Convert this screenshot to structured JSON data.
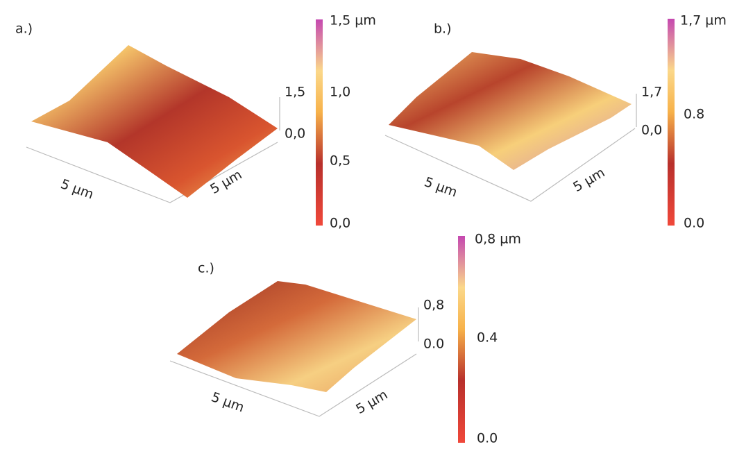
{
  "panels": [
    {
      "label": "a.)",
      "colorbar": [
        "1,5 µm",
        "1,0",
        "0,5",
        "0,0"
      ],
      "z_axis": [
        "1,5",
        "0,0"
      ],
      "axis_labels": [
        "5 µm",
        "5 µm"
      ]
    },
    {
      "label": "b.)",
      "colorbar": [
        "1,7 µm",
        "0.8",
        "0.0"
      ],
      "z_axis": [
        "1,7",
        "0,0"
      ],
      "axis_labels": [
        "5 µm",
        "5 µm"
      ]
    },
    {
      "label": "c.)",
      "colorbar": [
        "0,8 µm",
        "0.4",
        "0.0"
      ],
      "z_axis": [
        "0,8",
        "0.0"
      ],
      "axis_labels": [
        "5 µm",
        "5 µm"
      ]
    }
  ]
}
